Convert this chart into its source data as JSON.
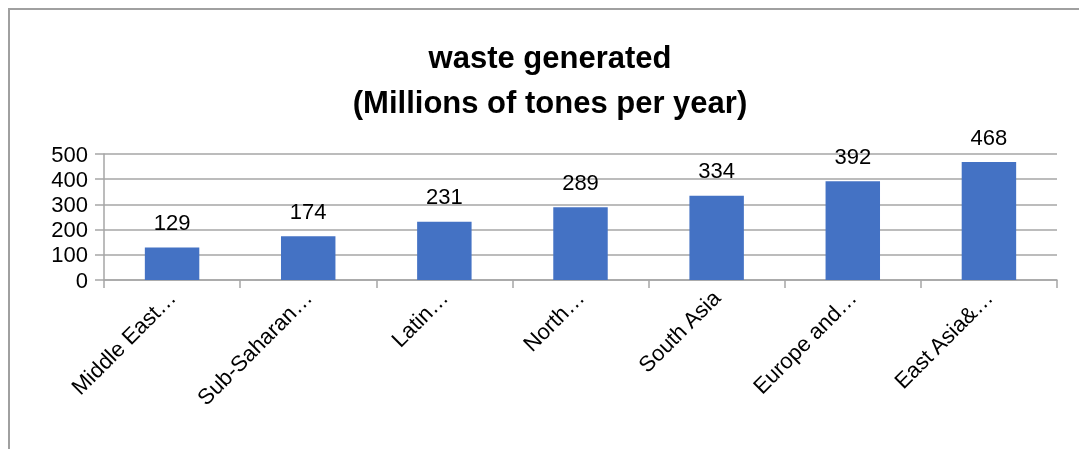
{
  "chart_data": {
    "type": "bar",
    "title": "waste generated\n(Millions of tones per year)",
    "categories": [
      "Middle East…",
      "Sub-Saharan…",
      "Latin…",
      "North…",
      "South Asia",
      "Europe and…",
      "East Asia&…"
    ],
    "values": [
      129,
      174,
      231,
      289,
      334,
      392,
      468
    ],
    "color": "#4472c4",
    "ylim": [
      0,
      500
    ],
    "yticks": [
      0,
      100,
      200,
      300,
      400,
      500
    ],
    "grid": "y",
    "data_labels": true
  }
}
